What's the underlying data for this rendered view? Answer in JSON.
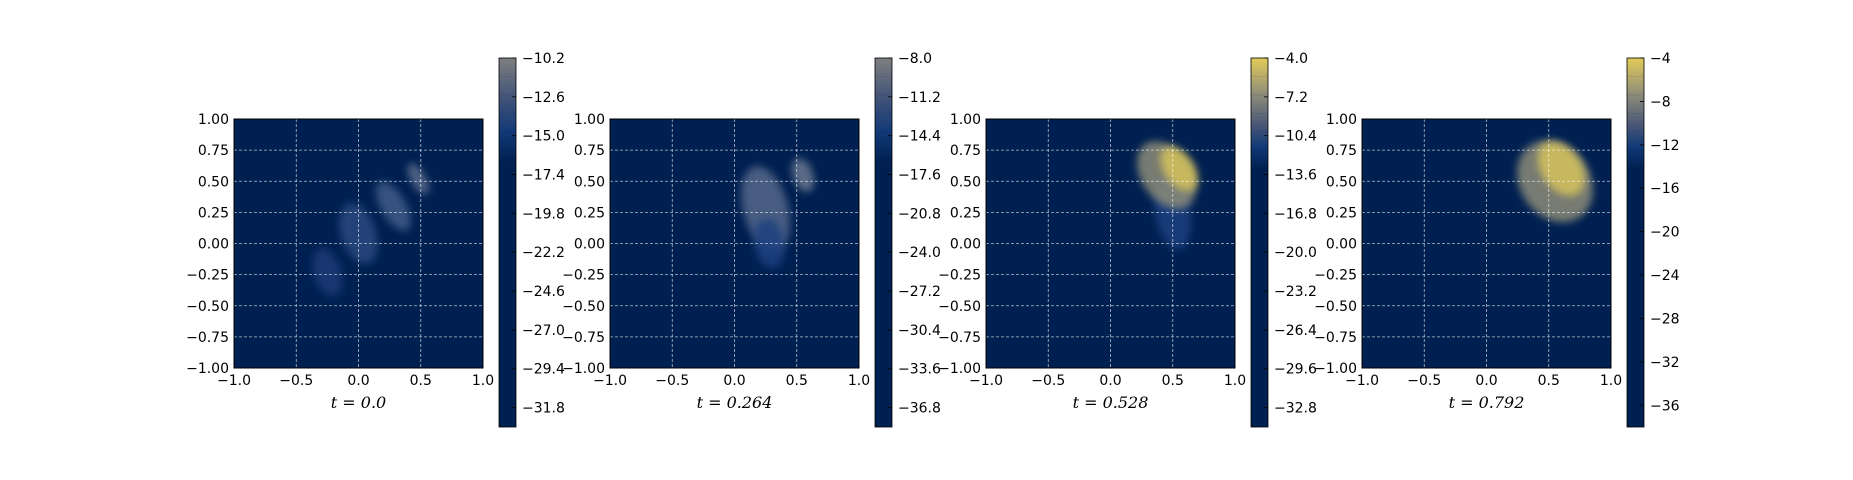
{
  "chart_data": [
    {
      "type": "heatmap",
      "caption": "t = 0.0",
      "xlim": [
        -1.0,
        1.0
      ],
      "ylim": [
        -1.0,
        1.0
      ],
      "xticks": [
        "−1.0",
        "−0.5",
        "0.0",
        "0.5",
        "1.0"
      ],
      "yticks": [
        "1.00",
        "0.75",
        "0.50",
        "0.25",
        "0.00",
        "−0.25",
        "−0.50",
        "−0.75",
        "−1.00"
      ],
      "grid": true,
      "colorbar": {
        "range": [
          -33.0,
          -10.2
        ],
        "max_color": "#7e7f80",
        "ticks": [
          "−10.2",
          "−12.6",
          "−15.0",
          "−17.4",
          "−19.8",
          "−22.2",
          "−24.6",
          "−27.0",
          "−29.4",
          "−31.8"
        ]
      },
      "features": [
        {
          "x": 0.0,
          "y": 0.08,
          "rx": 0.14,
          "ry": 0.25,
          "angle": -18,
          "color": "#2c4a80"
        },
        {
          "x": -0.25,
          "y": -0.23,
          "rx": 0.11,
          "ry": 0.2,
          "angle": -18,
          "color": "#1b3a78"
        },
        {
          "x": 0.28,
          "y": 0.3,
          "rx": 0.1,
          "ry": 0.22,
          "angle": -30,
          "color": "#3f5c88"
        },
        {
          "x": 0.48,
          "y": 0.52,
          "rx": 0.06,
          "ry": 0.14,
          "angle": -30,
          "color": "#5a6c8c"
        }
      ]
    },
    {
      "type": "heatmap",
      "caption": "t = 0.264",
      "xlim": [
        -1.0,
        1.0
      ],
      "ylim": [
        -1.0,
        1.0
      ],
      "xticks": [
        "−1.0",
        "−0.5",
        "0.0",
        "0.5",
        "1.0"
      ],
      "yticks": [
        "1.00",
        "0.75",
        "0.50",
        "0.25",
        "0.00",
        "−0.25",
        "−0.50",
        "−0.75",
        "−1.00"
      ],
      "grid": true,
      "colorbar": {
        "range": [
          -38.4,
          -8.0
        ],
        "max_color": "#7e7f80",
        "ticks": [
          "−8.0",
          "−11.2",
          "−14.4",
          "−17.6",
          "−20.8",
          "−24.0",
          "−27.2",
          "−30.4",
          "−33.6",
          "−36.8"
        ]
      },
      "features": [
        {
          "x": 0.25,
          "y": 0.28,
          "rx": 0.18,
          "ry": 0.35,
          "angle": -15,
          "color": "#55678a"
        },
        {
          "x": 0.28,
          "y": 0.0,
          "rx": 0.12,
          "ry": 0.2,
          "angle": -10,
          "color": "#1e3f80"
        },
        {
          "x": 0.55,
          "y": 0.55,
          "rx": 0.08,
          "ry": 0.14,
          "angle": -20,
          "color": "#6a7890"
        }
      ]
    },
    {
      "type": "heatmap",
      "caption": "t = 0.528",
      "xlim": [
        -1.0,
        1.0
      ],
      "ylim": [
        -1.0,
        1.0
      ],
      "xticks": [
        "−1.0",
        "−0.5",
        "0.0",
        "0.5",
        "1.0"
      ],
      "yticks": [
        "1.00",
        "0.75",
        "0.50",
        "0.25",
        "0.00",
        "−0.25",
        "−0.50",
        "−0.75",
        "−1.00"
      ],
      "grid": true,
      "colorbar": {
        "range": [
          -34.4,
          -4.0
        ],
        "max_color": "#e2cb58",
        "ticks": [
          "−4.0",
          "−7.2",
          "−10.4",
          "−13.6",
          "−16.8",
          "−20.0",
          "−23.2",
          "−26.4",
          "−29.6",
          "−32.8"
        ]
      },
      "features": [
        {
          "x": 0.5,
          "y": 0.25,
          "rx": 0.14,
          "ry": 0.3,
          "angle": -10,
          "color": "#1f3f80"
        },
        {
          "x": 0.45,
          "y": 0.55,
          "rx": 0.2,
          "ry": 0.3,
          "angle": -35,
          "color": "#8c8c78"
        },
        {
          "x": 0.55,
          "y": 0.6,
          "rx": 0.12,
          "ry": 0.2,
          "angle": -35,
          "color": "#d6c35c"
        }
      ]
    },
    {
      "type": "heatmap",
      "caption": "t = 0.792",
      "xlim": [
        -1.0,
        1.0
      ],
      "ylim": [
        -1.0,
        1.0
      ],
      "xticks": [
        "−1.0",
        "−0.5",
        "0.0",
        "0.5",
        "1.0"
      ],
      "yticks": [
        "1.00",
        "0.75",
        "0.50",
        "0.25",
        "0.00",
        "−0.25",
        "−0.50",
        "−0.75",
        "−1.00"
      ],
      "grid": true,
      "colorbar": {
        "range": [
          -38.0,
          -4.0
        ],
        "max_color": "#e2cb58",
        "ticks": [
          "−4",
          "−8",
          "−12",
          "−16",
          "−20",
          "−24",
          "−28",
          "−32",
          "−36"
        ]
      },
      "features": [
        {
          "x": 0.55,
          "y": 0.5,
          "rx": 0.28,
          "ry": 0.35,
          "angle": -35,
          "color": "#8c8c78"
        },
        {
          "x": 0.6,
          "y": 0.6,
          "rx": 0.16,
          "ry": 0.24,
          "angle": -35,
          "color": "#d6c35c"
        }
      ]
    }
  ],
  "colors": {
    "background": "#002051",
    "grid": "#ffffff",
    "cmap": "cividis"
  }
}
